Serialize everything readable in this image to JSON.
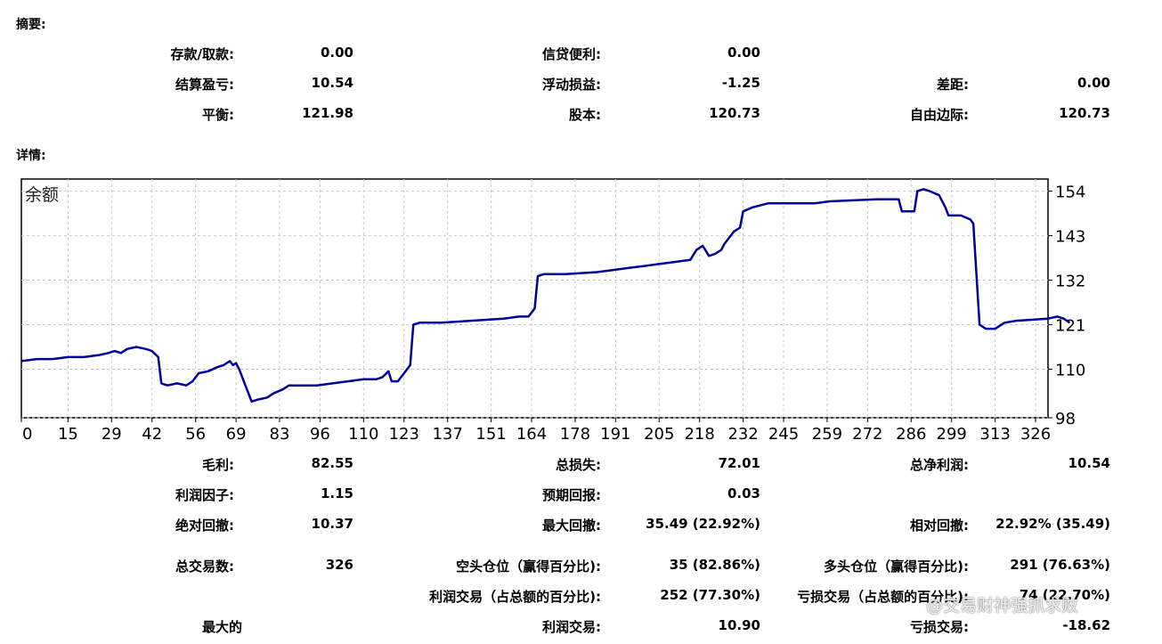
{
  "sections": {
    "summary": "摘要:",
    "details": "详情:"
  },
  "summary": {
    "deposit_label": "存款/取款:",
    "deposit_value": "0.00",
    "credit_label": "信贷便利:",
    "credit_value": "0.00",
    "closed_pl_label": "结算盈亏:",
    "closed_pl_value": "10.54",
    "floating_pl_label": "浮动损益:",
    "floating_pl_value": "-1.25",
    "spread_label": "差距:",
    "spread_value": "0.00",
    "balance_label": "平衡:",
    "balance_value": "121.98",
    "equity_label": "股本:",
    "equity_value": "120.73",
    "free_margin_label": "自由边际:",
    "free_margin_value": "120.73"
  },
  "details": {
    "gross_profit_label": "毛利:",
    "gross_profit_value": "82.55",
    "gross_loss_label": "总损失:",
    "gross_loss_value": "72.01",
    "net_profit_label": "总净利润:",
    "net_profit_value": "10.54",
    "profit_factor_label": "利润因子:",
    "profit_factor_value": "1.15",
    "expected_payoff_label": "预期回报:",
    "expected_payoff_value": "0.03",
    "abs_drawdown_label": "绝对回撤:",
    "abs_drawdown_value": "10.37",
    "max_drawdown_label": "最大回撤:",
    "max_drawdown_value": "35.49 (22.92%)",
    "rel_drawdown_label": "相对回撤:",
    "rel_drawdown_value": "22.92% (35.49)",
    "total_trades_label": "总交易数:",
    "total_trades_value": "326",
    "short_label": "空头仓位（赢得百分比):",
    "short_value": "35 (82.86%)",
    "long_label": "多头仓位（赢得百分比):",
    "long_value": "291 (76.63%)",
    "profit_trades_label": "利润交易（占总额的百分比):",
    "profit_trades_value": "252 (77.30%)",
    "loss_trades_label": "亏损交易（占总额的百分比):",
    "loss_trades_value": "74 (22.70%)",
    "largest_label": "最大的",
    "largest_profit_label": "利润交易:",
    "largest_profit_value": "10.90",
    "largest_loss_label": "亏损交易:",
    "largest_loss_value": "-18.62"
  },
  "watermark": "@交易财神强抓求败",
  "chart_data": {
    "type": "line",
    "title": "余额",
    "line_color": "#00009c",
    "grid": true,
    "xlim": [
      0,
      330
    ],
    "ylim": [
      98,
      157
    ],
    "x_ticks": [
      "0",
      "15",
      "29",
      "42",
      "56",
      "69",
      "83",
      "96",
      "110",
      "123",
      "137",
      "151",
      "164",
      "178",
      "191",
      "205",
      "218",
      "232",
      "245",
      "259",
      "272",
      "286",
      "299",
      "313",
      "326"
    ],
    "y_ticks": [
      "154",
      "143",
      "132",
      "121",
      "110",
      "98"
    ],
    "series": [
      {
        "points": [
          [
            0,
            112
          ],
          [
            5,
            112.5
          ],
          [
            10,
            112.5
          ],
          [
            15,
            113
          ],
          [
            20,
            113
          ],
          [
            25,
            113.5
          ],
          [
            28,
            114
          ],
          [
            30,
            114.5
          ],
          [
            32,
            114
          ],
          [
            34,
            115
          ],
          [
            37,
            115.5
          ],
          [
            40,
            115
          ],
          [
            42,
            114.5
          ],
          [
            44,
            113
          ],
          [
            45,
            106.5
          ],
          [
            47,
            106
          ],
          [
            50,
            106.5
          ],
          [
            53,
            106
          ],
          [
            55,
            107
          ],
          [
            57,
            109
          ],
          [
            60,
            109.5
          ],
          [
            63,
            110.5
          ],
          [
            65,
            111
          ],
          [
            67,
            112
          ],
          [
            68,
            111
          ],
          [
            69,
            111.5
          ],
          [
            70,
            110
          ],
          [
            72,
            106
          ],
          [
            74,
            102
          ],
          [
            76,
            102.5
          ],
          [
            79,
            103
          ],
          [
            81,
            104
          ],
          [
            84,
            105
          ],
          [
            86,
            106
          ],
          [
            90,
            106
          ],
          [
            95,
            106
          ],
          [
            100,
            106.5
          ],
          [
            105,
            107
          ],
          [
            110,
            107.5
          ],
          [
            114,
            107.5
          ],
          [
            116,
            108
          ],
          [
            118,
            109.5
          ],
          [
            119,
            107
          ],
          [
            121,
            107
          ],
          [
            123,
            109
          ],
          [
            125,
            111
          ],
          [
            126,
            121
          ],
          [
            128,
            121.5
          ],
          [
            135,
            121.5
          ],
          [
            145,
            122
          ],
          [
            155,
            122.5
          ],
          [
            160,
            123
          ],
          [
            163,
            123
          ],
          [
            165,
            125
          ],
          [
            166,
            133
          ],
          [
            168,
            133.5
          ],
          [
            175,
            133.5
          ],
          [
            185,
            134
          ],
          [
            190,
            134.5
          ],
          [
            195,
            135
          ],
          [
            200,
            135.5
          ],
          [
            205,
            136
          ],
          [
            210,
            136.5
          ],
          [
            215,
            137
          ],
          [
            217,
            139.5
          ],
          [
            219,
            140.5
          ],
          [
            221,
            138
          ],
          [
            223,
            138.5
          ],
          [
            225,
            139.5
          ],
          [
            226,
            141
          ],
          [
            228,
            143
          ],
          [
            229,
            144
          ],
          [
            231,
            145
          ],
          [
            232,
            149
          ],
          [
            235,
            150
          ],
          [
            240,
            151
          ],
          [
            255,
            151
          ],
          [
            260,
            151.5
          ],
          [
            275,
            152
          ],
          [
            282,
            152
          ],
          [
            283,
            149
          ],
          [
            287,
            149
          ],
          [
            288,
            154
          ],
          [
            290,
            154.5
          ],
          [
            292,
            154
          ],
          [
            295,
            153
          ],
          [
            297,
            150
          ],
          [
            298,
            148
          ],
          [
            302,
            148
          ],
          [
            305,
            147
          ],
          [
            306,
            146
          ],
          [
            308,
            121
          ],
          [
            310,
            120
          ],
          [
            313,
            120
          ],
          [
            316,
            121.5
          ],
          [
            320,
            122
          ],
          [
            330,
            122.5
          ],
          [
            333,
            123
          ],
          [
            335,
            122.5
          ],
          [
            337,
            121.5
          ]
        ]
      }
    ]
  }
}
